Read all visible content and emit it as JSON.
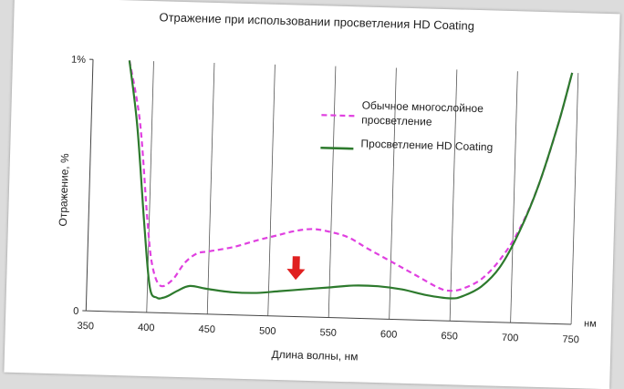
{
  "chart_data": {
    "type": "line",
    "title": "Отражение при использовании просветления HD Coating",
    "xlabel": "Длина волны, нм",
    "ylabel": "Отражение, %",
    "x_unit": "нм",
    "xlim": [
      350,
      750
    ],
    "ylim": [
      0,
      1
    ],
    "x_ticks": [
      "350",
      "400",
      "450",
      "500",
      "550",
      "600",
      "650",
      "700",
      "750"
    ],
    "y_ticks": [
      "0",
      "1%"
    ],
    "grid": "vertical",
    "legend_position": "right",
    "series": [
      {
        "name": "Обычное многослойное просветление",
        "color": "#e040e0",
        "style": "dashed",
        "x": [
          380,
          390,
          398,
          403,
          410,
          420,
          430,
          440,
          450,
          470,
          490,
          505,
          520,
          535,
          550,
          565,
          580,
          600,
          620,
          640,
          650,
          660,
          675,
          690,
          705,
          720,
          735,
          745
        ],
        "y": [
          1.0,
          0.76,
          0.39,
          0.2,
          0.11,
          0.13,
          0.2,
          0.24,
          0.25,
          0.27,
          0.3,
          0.32,
          0.34,
          0.35,
          0.34,
          0.32,
          0.28,
          0.23,
          0.18,
          0.13,
          0.12,
          0.13,
          0.17,
          0.25,
          0.37,
          0.55,
          0.8,
          1.0
        ]
      },
      {
        "name": "Просветление HD Coating",
        "color": "#2d7a2d",
        "style": "solid",
        "x": [
          380,
          388,
          396,
          402,
          408,
          413,
          418,
          425,
          435,
          450,
          470,
          490,
          510,
          530,
          550,
          570,
          590,
          610,
          630,
          650,
          660,
          675,
          690,
          705,
          720,
          735,
          745
        ],
        "y": [
          1.0,
          0.74,
          0.35,
          0.1,
          0.06,
          0.06,
          0.07,
          0.09,
          0.11,
          0.1,
          0.09,
          0.09,
          0.1,
          0.11,
          0.12,
          0.13,
          0.13,
          0.12,
          0.1,
          0.09,
          0.1,
          0.14,
          0.22,
          0.36,
          0.55,
          0.8,
          1.0
        ]
      }
    ],
    "annotation": {
      "type": "arrow-down",
      "color": "#e02020",
      "x": 522,
      "y": 0.24
    }
  }
}
